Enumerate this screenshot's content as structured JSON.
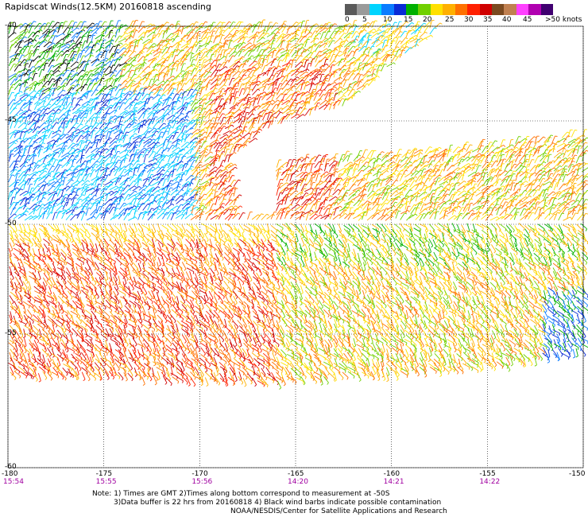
{
  "title": "Rapidscat Winds(12.5KM) 20160818 ascending",
  "colorbar": {
    "labels": [
      "0",
      "5",
      "10",
      "15",
      "20",
      "25",
      "30",
      "35",
      "40",
      "45",
      ">50 knots"
    ],
    "colors": [
      "#5a5a5a",
      "#9a9a9a",
      "#00d4ff",
      "#0a7cff",
      "#0a2bd6",
      "#00b000",
      "#70d000",
      "#ffe000",
      "#ffb000",
      "#ff7000",
      "#ff2000",
      "#d00000",
      "#7a4a20",
      "#c08050",
      "#ff40ff",
      "#b000b0",
      "#400070"
    ]
  },
  "map": {
    "lon_range": [
      -180,
      -150
    ],
    "lat_range": [
      -40,
      -60
    ],
    "x_ticks": [
      "-180",
      "-175",
      "-170",
      "-165",
      "-160",
      "-155",
      "-150"
    ],
    "y_ticks": [
      "-40",
      "-45",
      "-50",
      "-55",
      "-60"
    ],
    "time_labels": [
      "15:54",
      "15:55",
      "15:56",
      "14:20",
      "14:21",
      "14:22"
    ]
  },
  "notes": {
    "line1": "Note: 1) Times are GMT 2)Times along bottom correspond to measurement at -50S",
    "line2": "3)Data buffer is 22 hrs from 20160818 4) Black wind barbs indicate possible contamination",
    "line3": "NOAA/NESDIS/Center for Satellite Applications and Research"
  }
}
